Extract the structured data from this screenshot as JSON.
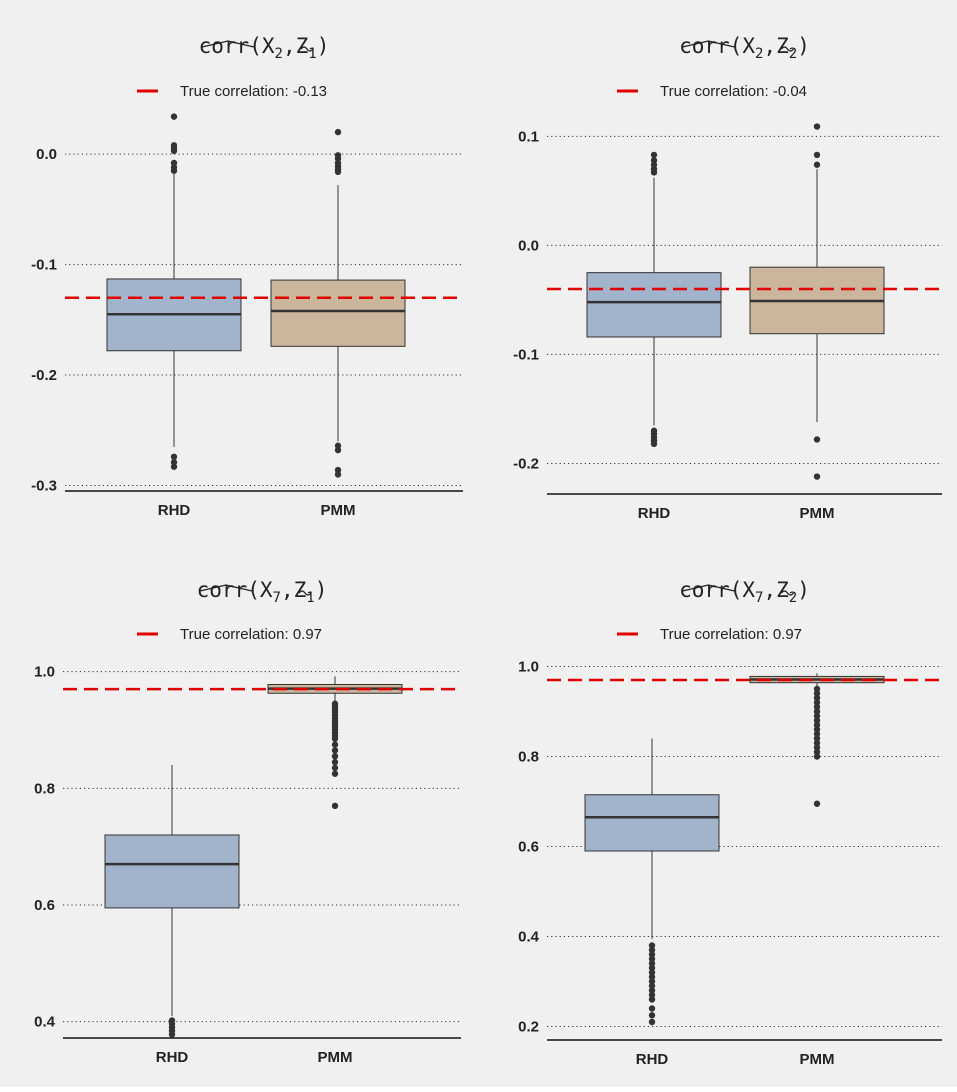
{
  "chart_data": [
    {
      "type": "box",
      "title": "corr(X2, Z1)",
      "title_parts": {
        "func": "corr",
        "x": "X",
        "x_sub": "2",
        "z": "Z",
        "z_sub": "1"
      },
      "legend": {
        "label": "True correlation: -0.13",
        "position": "top"
      },
      "true_value": -0.13,
      "ylim": [
        -0.305,
        0.04
      ],
      "yticks": [
        0.0,
        -0.1,
        -0.2,
        -0.3
      ],
      "ytick_labels": [
        "0.0",
        "-0.1",
        "-0.2",
        "-0.3"
      ],
      "categories": [
        "RHD",
        "PMM"
      ],
      "boxes": [
        {
          "name": "RHD",
          "color": "#a2b3cc",
          "q1": -0.178,
          "median": -0.145,
          "q3": -0.113,
          "whisker_low": -0.265,
          "whisker_high": -0.018,
          "outliers": [
            0.034,
            0.008,
            0.005,
            0.003,
            -0.008,
            -0.012,
            -0.015,
            -0.274,
            -0.279,
            -0.283
          ]
        },
        {
          "name": "PMM",
          "color": "#ccb59d",
          "q1": -0.174,
          "median": -0.142,
          "q3": -0.114,
          "whisker_low": -0.26,
          "whisker_high": -0.028,
          "outliers": [
            0.02,
            -0.001,
            -0.004,
            -0.008,
            -0.011,
            -0.014,
            -0.016,
            -0.264,
            -0.268,
            -0.286,
            -0.29
          ]
        }
      ]
    },
    {
      "type": "box",
      "title": "corr(X2, Z2)",
      "title_parts": {
        "func": "corr",
        "x": "X",
        "x_sub": "2",
        "z": "Z",
        "z_sub": "2"
      },
      "legend": {
        "label": "True correlation: -0.04",
        "position": "top"
      },
      "true_value": -0.04,
      "ylim": [
        -0.228,
        0.115
      ],
      "yticks": [
        0.1,
        0.0,
        -0.1,
        -0.2
      ],
      "ytick_labels": [
        "0.1",
        "0.0",
        "-0.1",
        "-0.2"
      ],
      "categories": [
        "RHD",
        "PMM"
      ],
      "boxes": [
        {
          "name": "RHD",
          "color": "#a2b3cc",
          "q1": -0.084,
          "median": -0.052,
          "q3": -0.025,
          "whisker_low": -0.165,
          "whisker_high": 0.062,
          "outliers": [
            0.083,
            0.078,
            0.074,
            0.07,
            0.067,
            -0.17,
            -0.173,
            -0.176,
            -0.179,
            -0.182
          ]
        },
        {
          "name": "PMM",
          "color": "#ccb59d",
          "q1": -0.081,
          "median": -0.051,
          "q3": -0.02,
          "whisker_low": -0.162,
          "whisker_high": 0.07,
          "outliers": [
            0.109,
            0.083,
            0.074,
            -0.178,
            -0.212
          ]
        }
      ]
    },
    {
      "type": "box",
      "title": "corr(X7, Z1)",
      "title_parts": {
        "func": "corr",
        "x": "X",
        "x_sub": "7",
        "z": "Z",
        "z_sub": "1"
      },
      "legend": {
        "label": "True correlation: 0.97",
        "position": "top"
      },
      "true_value": 0.97,
      "ylim": [
        0.372,
        1.02
      ],
      "yticks": [
        1.0,
        0.8,
        0.6,
        0.4
      ],
      "ytick_labels": [
        "1.0",
        "0.8",
        "0.6",
        "0.4"
      ],
      "categories": [
        "RHD",
        "PMM"
      ],
      "boxes": [
        {
          "name": "RHD",
          "color": "#a2b3cc",
          "q1": 0.595,
          "median": 0.67,
          "q3": 0.72,
          "whisker_low": 0.41,
          "whisker_high": 0.84,
          "outliers": [
            0.402,
            0.396,
            0.39,
            0.384,
            0.378
          ]
        },
        {
          "name": "PMM",
          "color": "#ccb59d",
          "q1": 0.963,
          "median": 0.971,
          "q3": 0.978,
          "whisker_low": 0.948,
          "whisker_high": 0.992,
          "outliers": [
            0.945,
            0.94,
            0.935,
            0.93,
            0.925,
            0.92,
            0.915,
            0.91,
            0.905,
            0.9,
            0.895,
            0.89,
            0.885,
            0.875,
            0.865,
            0.855,
            0.845,
            0.835,
            0.825,
            0.77
          ]
        }
      ]
    },
    {
      "type": "box",
      "title": "corr(X7, Z2)",
      "title_parts": {
        "func": "corr",
        "x": "X",
        "x_sub": "7",
        "z": "Z",
        "z_sub": "2"
      },
      "legend": {
        "label": "True correlation: 0.97",
        "position": "top"
      },
      "true_value": 0.97,
      "ylim": [
        0.17,
        1.01
      ],
      "yticks": [
        1.0,
        0.8,
        0.6,
        0.4,
        0.2
      ],
      "ytick_labels": [
        "1.0",
        "0.8",
        "0.6",
        "0.4",
        "0.2"
      ],
      "categories": [
        "RHD",
        "PMM"
      ],
      "boxes": [
        {
          "name": "RHD",
          "color": "#a2b3cc",
          "q1": 0.59,
          "median": 0.665,
          "q3": 0.715,
          "whisker_low": 0.395,
          "whisker_high": 0.84,
          "outliers": [
            0.38,
            0.37,
            0.36,
            0.35,
            0.34,
            0.33,
            0.32,
            0.31,
            0.3,
            0.29,
            0.28,
            0.27,
            0.26,
            0.24,
            0.225,
            0.21
          ]
        },
        {
          "name": "PMM",
          "color": "#ccb59d",
          "q1": 0.964,
          "median": 0.971,
          "q3": 0.978,
          "whisker_low": 0.955,
          "whisker_high": 0.985,
          "outliers": [
            0.95,
            0.94,
            0.93,
            0.92,
            0.91,
            0.9,
            0.89,
            0.88,
            0.87,
            0.86,
            0.85,
            0.84,
            0.83,
            0.82,
            0.81,
            0.8,
            0.695
          ]
        }
      ]
    }
  ]
}
